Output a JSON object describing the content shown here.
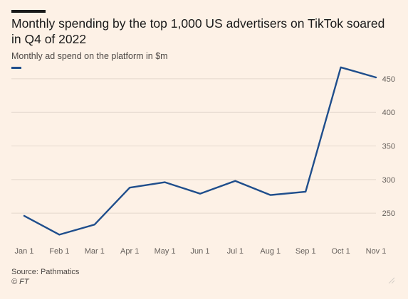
{
  "header": {
    "title": "Monthly spending by the top 1,000 US advertisers on TikTok soared in Q4 of 2022",
    "subtitle": "Monthly ad spend on the platform in $m"
  },
  "footer": {
    "source": "Source: Pathmatics",
    "credit": "© FT"
  },
  "colors": {
    "background": "#fdf1e6",
    "series": "#1f4e8c",
    "gridline": "#e4d8cd"
  },
  "chart_data": {
    "type": "line",
    "title": "Monthly spending by the top 1,000 US advertisers on TikTok soared in Q4 of 2022",
    "subtitle": "Monthly ad spend on the platform in $m",
    "categories": [
      "Jan 1",
      "Feb 1",
      "Mar 1",
      "Apr 1",
      "May 1",
      "Jun 1",
      "Jul 1",
      "Aug 1",
      "Sep 1",
      "Oct 1",
      "Nov 1"
    ],
    "series": [
      {
        "values": [
          246,
          218,
          233,
          288,
          296,
          279,
          298,
          277,
          282,
          467,
          452
        ]
      }
    ],
    "yticks": [
      250,
      300,
      350,
      400,
      450
    ],
    "ylim": [
      210,
      470
    ],
    "y_axis_side": "right",
    "grid": true,
    "xlabel": "",
    "ylabel": ""
  }
}
